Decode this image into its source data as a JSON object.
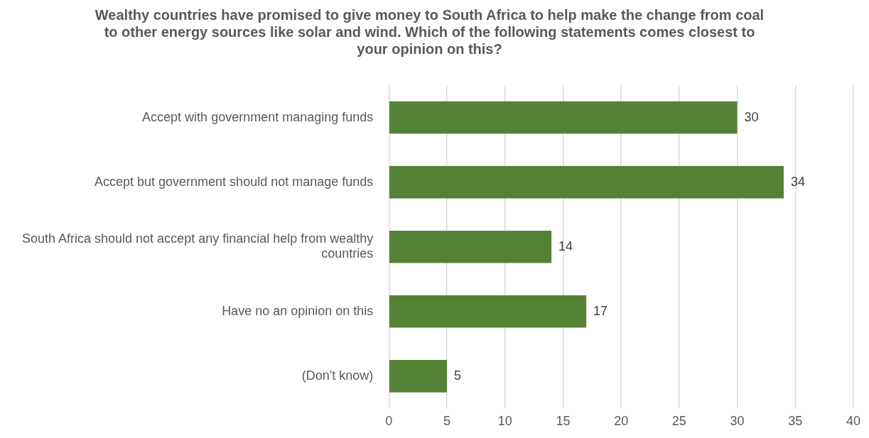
{
  "chart_data": {
    "type": "bar",
    "orientation": "horizontal",
    "title": "Wealthy countries have promised to give money to South Africa to help make the change from coal to other energy sources like solar and wind. Which of the following statements comes closest to your opinion on this?",
    "categories": [
      "Accept with government managing funds",
      "Accept but government should not manage funds",
      "South Africa should not accept any financial help from wealthy countries",
      "Have no an opinion on this",
      "(Don't know)"
    ],
    "values": [
      30,
      34,
      14,
      17,
      5
    ],
    "color": "#548235",
    "data_labels": true,
    "grid": "x",
    "legend": false,
    "xlim": [
      0,
      40
    ],
    "xticks": [
      0,
      5,
      10,
      15,
      20,
      25,
      30,
      35,
      40
    ]
  }
}
